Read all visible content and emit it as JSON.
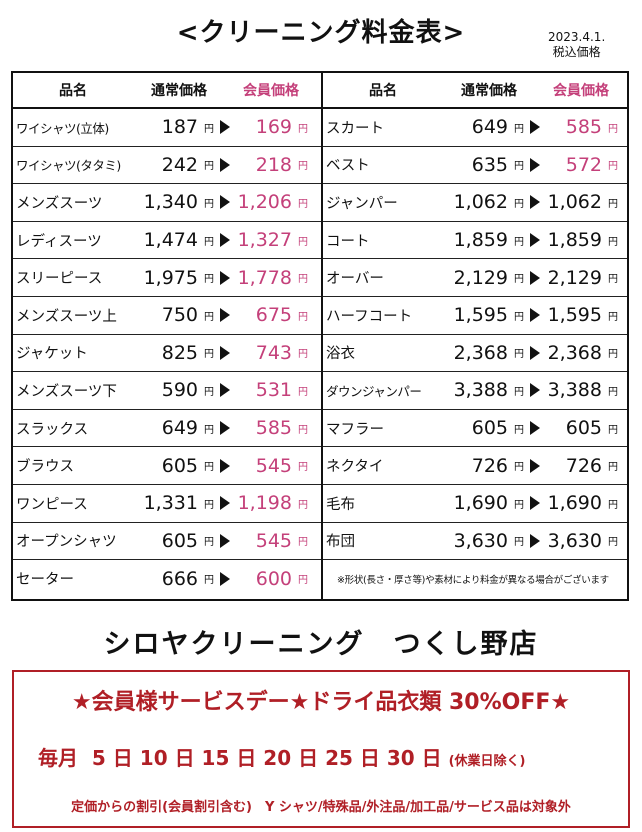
{
  "title": "<クリーニング料金表>",
  "date_line1": "2023.4.1.",
  "date_line2": "税込価格",
  "headers": {
    "name": "品名",
    "regular": "通常価格",
    "member": "会員価格"
  },
  "yen": "円",
  "left_items": [
    {
      "name": "ワイシャツ(立体)",
      "regular": "187",
      "member": "169"
    },
    {
      "name": "ワイシャツ(タタミ)",
      "regular": "242",
      "member": "218"
    },
    {
      "name": "メンズスーツ",
      "regular": "1,340",
      "member": "1,206"
    },
    {
      "name": "レディスーツ",
      "regular": "1,474",
      "member": "1,327"
    },
    {
      "name": "スリーピース",
      "regular": "1,975",
      "member": "1,778"
    },
    {
      "name": "メンズスーツ上",
      "regular": "750",
      "member": "675"
    },
    {
      "name": "ジャケット",
      "regular": "825",
      "member": "743"
    },
    {
      "name": "メンズスーツ下",
      "regular": "590",
      "member": "531"
    },
    {
      "name": "スラックス",
      "regular": "649",
      "member": "585"
    },
    {
      "name": "ブラウス",
      "regular": "605",
      "member": "545"
    },
    {
      "name": "ワンピース",
      "regular": "1,331",
      "member": "1,198"
    },
    {
      "name": "オープンシャツ",
      "regular": "605",
      "member": "545"
    },
    {
      "name": "セーター",
      "regular": "666",
      "member": "600"
    }
  ],
  "right_items": [
    {
      "name": "スカート",
      "regular": "649",
      "member": "585",
      "discount": true
    },
    {
      "name": "ベスト",
      "regular": "635",
      "member": "572",
      "discount": true
    },
    {
      "name": "ジャンパー",
      "regular": "1,062",
      "member": "1,062",
      "discount": false
    },
    {
      "name": "コート",
      "regular": "1,859",
      "member": "1,859",
      "discount": false
    },
    {
      "name": "オーバー",
      "regular": "2,129",
      "member": "2,129",
      "discount": false
    },
    {
      "name": "ハーフコート",
      "regular": "1,595",
      "member": "1,595",
      "discount": false
    },
    {
      "name": "浴衣",
      "regular": "2,368",
      "member": "2,368",
      "discount": false
    },
    {
      "name": "ダウンジャンパー",
      "regular": "3,388",
      "member": "3,388",
      "discount": false
    },
    {
      "name": "マフラー",
      "regular": "605",
      "member": "605",
      "discount": false
    },
    {
      "name": "ネクタイ",
      "regular": "726",
      "member": "726",
      "discount": false
    },
    {
      "name": "毛布",
      "regular": "1,690",
      "member": "1,690",
      "discount": false
    },
    {
      "name": "布団",
      "regular": "3,630",
      "member": "3,630",
      "discount": false
    }
  ],
  "note": "※形状(長さ・厚さ等)や素材により料金が異なる場合がございます",
  "shop_name": "シロヤクリーニング　つくし野店",
  "promo": {
    "headline": "★会員様サービスデー★ドライ品衣類 30%OFF★",
    "days_label": "毎月",
    "days": [
      "5",
      "10",
      "15",
      "20",
      "25",
      "30"
    ],
    "day_unit": "日",
    "holiday_note": "(休業日除く)",
    "footer": "定価からの割引(会員割引含む)　Y シャツ/特殊品/外注品/加工品/サービス品は対象外"
  },
  "colors": {
    "member_price": "#c4407a",
    "promo": "#b01f26"
  }
}
